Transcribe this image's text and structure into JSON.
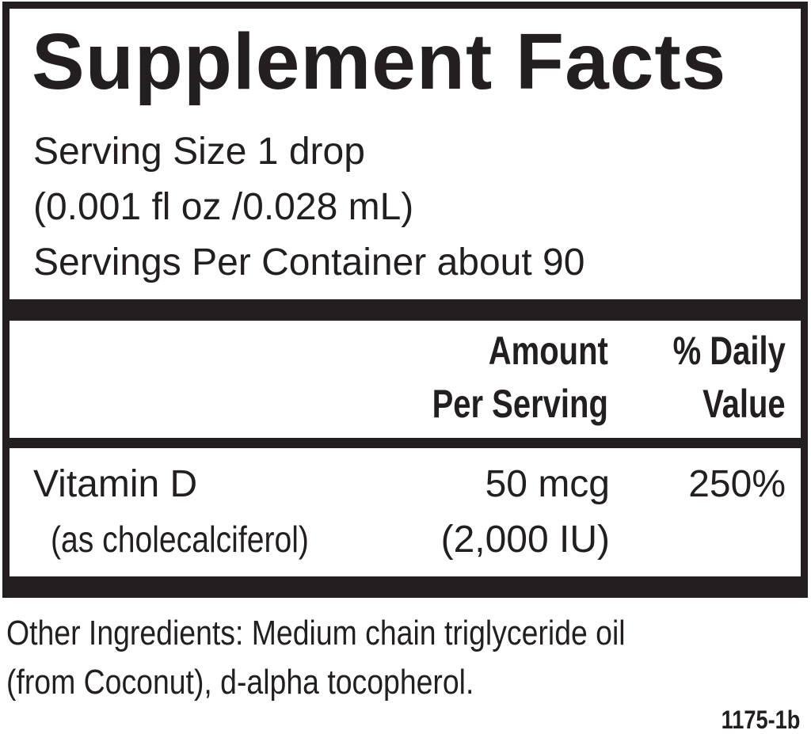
{
  "title": "Supplement Facts",
  "serving": {
    "size_line": "Serving Size 1 drop",
    "volume_line": "(0.001 fl oz /0.028 mL)",
    "per_container_line": "Servings Per Container about 90"
  },
  "header": {
    "amount_line1": "Amount",
    "amount_line2": "Per Serving",
    "dv_line1": "% Daily",
    "dv_line2": "Value"
  },
  "rows": [
    {
      "name": "Vitamin D",
      "source": "(as cholecalciferol)",
      "amount": "50 mcg",
      "amount_alt": "(2,000 IU)",
      "daily_value": "250%"
    }
  ],
  "other_ingredients": {
    "line1": "Other Ingredients:  Medium chain triglyceride oil",
    "line2": "(from Coconut), d-alpha tocopherol."
  },
  "code": "1175-1b"
}
